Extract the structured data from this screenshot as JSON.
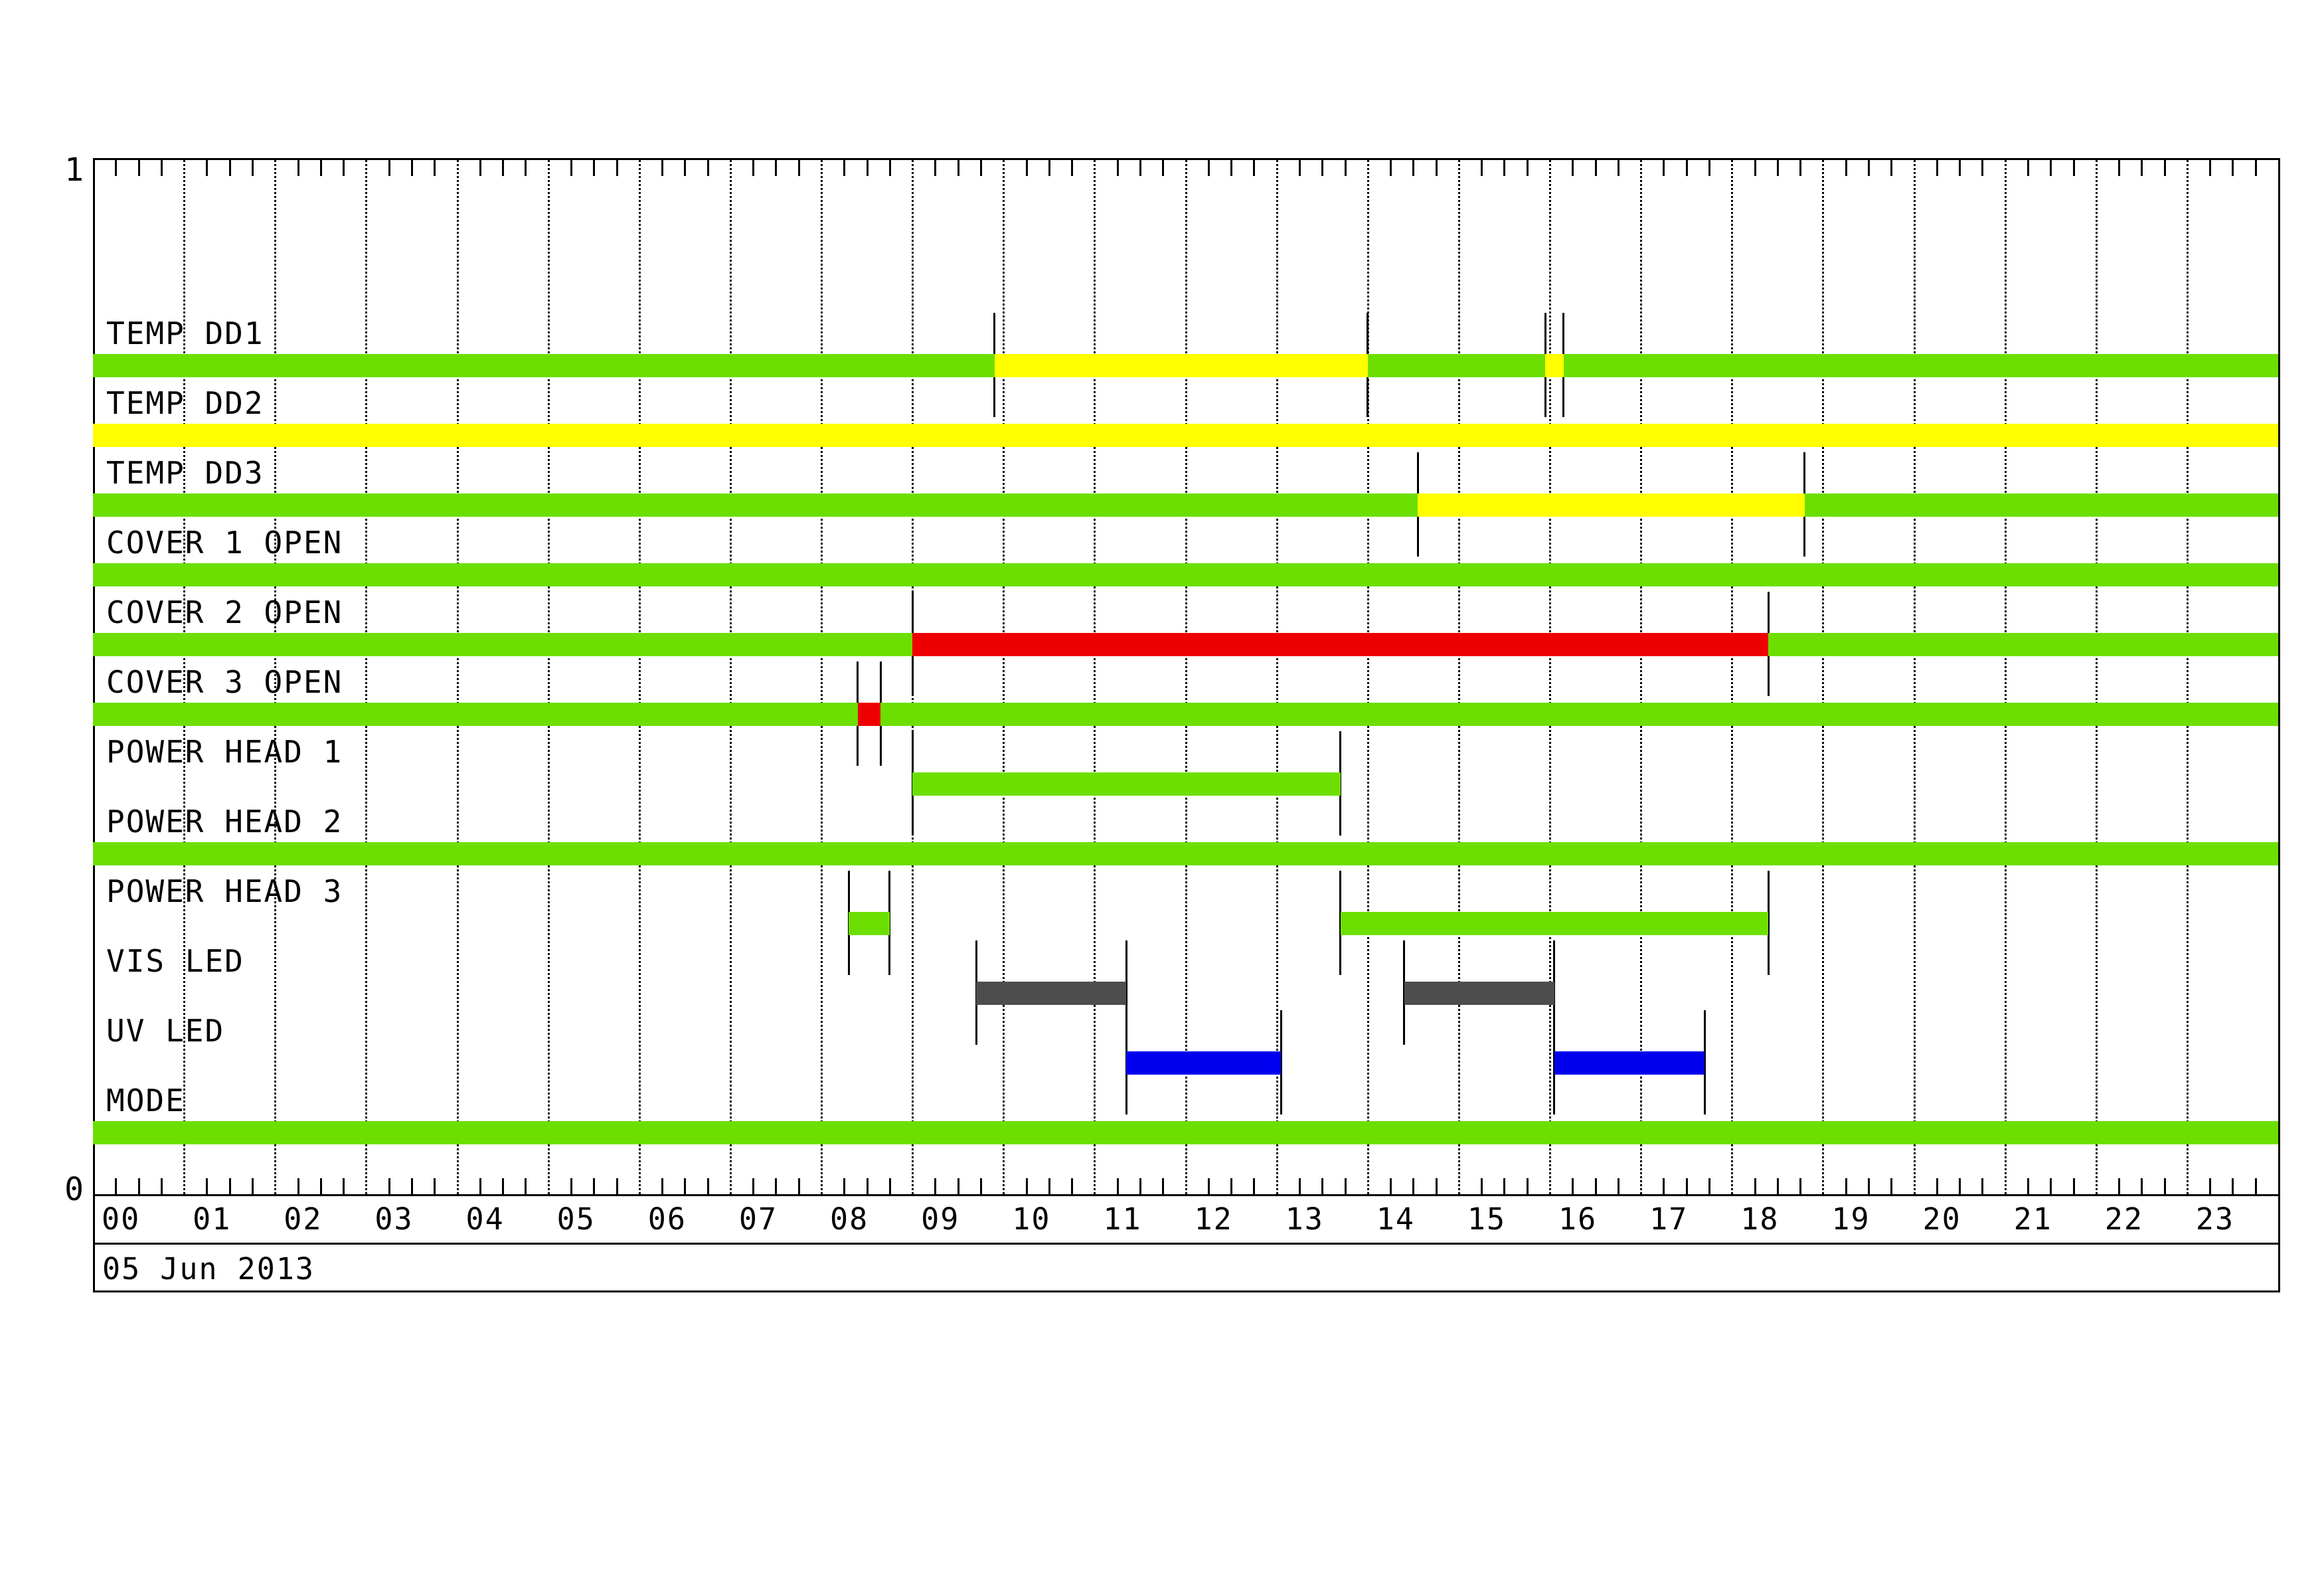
{
  "chart_data": {
    "type": "bar",
    "subtype": "status-timeline-gantt",
    "title": "",
    "date": "05 Jun 2013",
    "x_axis": {
      "unit": "hour of day",
      "min": 0,
      "max": 24,
      "major_tick_interval": 1,
      "minor_tick_interval": 0.25,
      "grid": "dotted vertical line at every hour",
      "labels": [
        "00",
        "01",
        "02",
        "03",
        "04",
        "05",
        "06",
        "07",
        "08",
        "09",
        "10",
        "11",
        "12",
        "13",
        "14",
        "15",
        "16",
        "17",
        "18",
        "19",
        "20",
        "21",
        "22",
        "23"
      ]
    },
    "y_axis": {
      "top_label": "1",
      "bottom_label": "0"
    },
    "legend": "none",
    "colors": {
      "green": "#6CDF00",
      "yellow": "#FFFF00",
      "red": "#EE0000",
      "blue": "#0000EE",
      "darkgray": "#4D4D4D"
    },
    "rows": [
      {
        "name": "TEMP DD1",
        "segments": [
          {
            "start": 0,
            "end": 9.9,
            "state": "green"
          },
          {
            "start": 9.9,
            "end": 14.0,
            "state": "yellow"
          },
          {
            "start": 14.0,
            "end": 15.95,
            "state": "green"
          },
          {
            "start": 15.95,
            "end": 16.15,
            "state": "yellow"
          },
          {
            "start": 16.15,
            "end": 24,
            "state": "green"
          }
        ],
        "markers": [
          9.9,
          14.0,
          15.95,
          16.15
        ]
      },
      {
        "name": "TEMP DD2",
        "segments": [
          {
            "start": 0,
            "end": 24,
            "state": "yellow"
          }
        ],
        "markers": []
      },
      {
        "name": "TEMP DD3",
        "segments": [
          {
            "start": 0,
            "end": 14.55,
            "state": "green"
          },
          {
            "start": 14.55,
            "end": 18.8,
            "state": "yellow"
          },
          {
            "start": 18.8,
            "end": 24,
            "state": "green"
          }
        ],
        "markers": [
          14.55,
          18.8
        ]
      },
      {
        "name": "COVER 1 OPEN",
        "segments": [
          {
            "start": 0,
            "end": 24,
            "state": "green"
          }
        ],
        "markers": []
      },
      {
        "name": "COVER 2 OPEN",
        "segments": [
          {
            "start": 0,
            "end": 9.0,
            "state": "green"
          },
          {
            "start": 9.0,
            "end": 18.4,
            "state": "red"
          },
          {
            "start": 18.4,
            "end": 24,
            "state": "green"
          }
        ],
        "markers": [
          9.0,
          18.4
        ]
      },
      {
        "name": "COVER 3 OPEN",
        "segments": [
          {
            "start": 0,
            "end": 8.4,
            "state": "green"
          },
          {
            "start": 8.4,
            "end": 8.65,
            "state": "red"
          },
          {
            "start": 8.65,
            "end": 24,
            "state": "green"
          }
        ],
        "markers": [
          8.4,
          8.65
        ]
      },
      {
        "name": "POWER HEAD 1",
        "segments": [
          {
            "start": 9.0,
            "end": 13.7,
            "state": "green"
          }
        ],
        "markers": [
          9.0,
          13.7
        ]
      },
      {
        "name": "POWER HEAD 2",
        "segments": [
          {
            "start": 0,
            "end": 24,
            "state": "green"
          }
        ],
        "markers": []
      },
      {
        "name": "POWER HEAD 3",
        "segments": [
          {
            "start": 8.3,
            "end": 8.75,
            "state": "green"
          },
          {
            "start": 13.7,
            "end": 18.4,
            "state": "green"
          }
        ],
        "markers": [
          8.3,
          8.75,
          13.7,
          18.4
        ]
      },
      {
        "name": "VIS LED",
        "segments": [
          {
            "start": 9.7,
            "end": 11.35,
            "state": "darkgray"
          },
          {
            "start": 14.4,
            "end": 16.05,
            "state": "darkgray"
          }
        ],
        "markers": [
          9.7,
          11.35,
          14.4,
          16.05
        ]
      },
      {
        "name": "UV LED",
        "segments": [
          {
            "start": 11.35,
            "end": 13.05,
            "state": "blue"
          },
          {
            "start": 16.05,
            "end": 17.7,
            "state": "blue"
          }
        ],
        "markers": [
          11.35,
          13.05,
          16.05,
          17.7
        ]
      },
      {
        "name": "MODE",
        "segments": [
          {
            "start": 0,
            "end": 24,
            "state": "green"
          }
        ],
        "markers": []
      }
    ]
  }
}
